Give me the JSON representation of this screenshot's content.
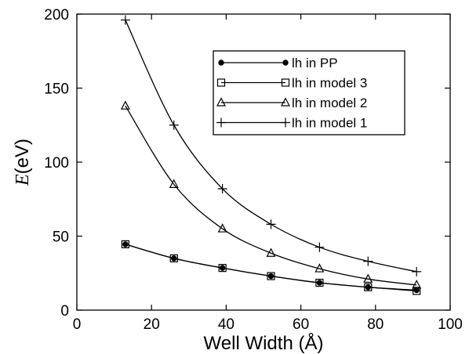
{
  "chart_data": {
    "type": "line",
    "xlabel": "Well Width (Å)",
    "ylabel_italic": "E",
    "ylabel_rest": "(eV)",
    "xlim": [
      0,
      100
    ],
    "ylim": [
      0,
      200
    ],
    "xticks": [
      0,
      20,
      40,
      60,
      80,
      100
    ],
    "yticks": [
      0,
      50,
      100,
      150,
      200
    ],
    "grid": false,
    "legend_position": "top-right",
    "series": [
      {
        "name": "lh in PP",
        "marker": "filled-circle",
        "x": [
          13,
          26,
          39,
          52,
          65,
          78,
          91
        ],
        "y": [
          44.5,
          35,
          28.5,
          23,
          18.5,
          15.5,
          13.5
        ]
      },
      {
        "name": "lh in model 3",
        "marker": "square",
        "x": [
          13,
          26,
          39,
          52,
          65,
          78,
          91
        ],
        "y": [
          44.5,
          35,
          28.5,
          23,
          18.5,
          15.5,
          13
        ]
      },
      {
        "name": "lh in model 2",
        "marker": "triangle",
        "x": [
          13,
          26,
          39,
          52,
          65,
          78,
          91
        ],
        "y": [
          138,
          85,
          55,
          38.5,
          28,
          21,
          17
        ]
      },
      {
        "name": "lh in model 1",
        "marker": "plus",
        "x": [
          13,
          26,
          39,
          52,
          65,
          78,
          91
        ],
        "y": [
          196,
          125,
          82,
          58,
          42.5,
          33,
          26
        ]
      }
    ]
  }
}
